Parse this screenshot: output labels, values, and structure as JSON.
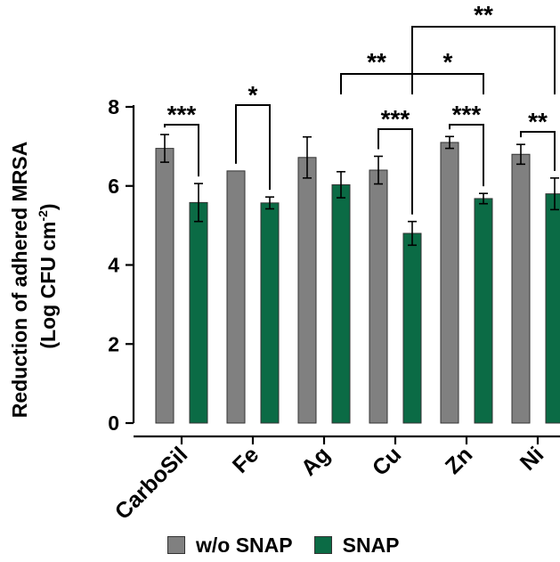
{
  "chart_data": {
    "type": "bar",
    "categories": [
      "CarboSil",
      "Fe",
      "Ag",
      "Cu",
      "Zn",
      "Ni"
    ],
    "ylabel_line1": "Reduction of adhered MRSA",
    "ylabel_line2_prefix": "(Log CFU cm",
    "ylabel_sup": "-2",
    "ylabel_line2_suffix": ")",
    "ylim": [
      0,
      8
    ],
    "yticks": [
      "0",
      "2",
      "4",
      "6",
      "8"
    ],
    "series": [
      {
        "name": "w/o SNAP",
        "color": "#808080",
        "values": [
          6.95,
          6.38,
          6.72,
          6.4,
          7.1,
          6.8
        ],
        "errors": [
          0.35,
          0.0,
          0.52,
          0.35,
          0.15,
          0.25
        ]
      },
      {
        "name": "SNAP",
        "color": "#0b6b45",
        "values": [
          5.58,
          5.57,
          6.03,
          4.8,
          5.68,
          5.8
        ],
        "errors": [
          0.48,
          0.15,
          0.33,
          0.3,
          0.13,
          0.4
        ]
      }
    ],
    "annotations": [
      {
        "type": "within",
        "category": 0,
        "label": "***"
      },
      {
        "type": "within",
        "category": 1,
        "label": "*"
      },
      {
        "type": "within",
        "category": 3,
        "label": "***"
      },
      {
        "type": "within",
        "category": 4,
        "label": "***"
      },
      {
        "type": "within",
        "category": 5,
        "label": "**"
      },
      {
        "type": "between",
        "from": 2,
        "to": 3,
        "label": "**"
      },
      {
        "type": "between",
        "from": 3,
        "to": 4,
        "label": "*"
      },
      {
        "type": "between",
        "from": 3,
        "to": 5,
        "label": "**"
      }
    ],
    "legend_position": "bottom"
  }
}
